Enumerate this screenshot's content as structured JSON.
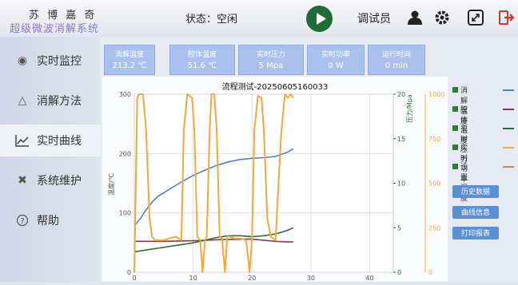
{
  "header": {
    "logo_line1": "苏 博 嘉 奇",
    "logo_line2": "超级微波消解系统",
    "status": "状态：空闲",
    "user": "调试员"
  },
  "sidebar": {
    "items": [
      {
        "label": "实时监控",
        "icon": "location-pin-icon"
      },
      {
        "label": "消解方法",
        "icon": "flask-icon"
      },
      {
        "label": "实时曲线",
        "icon": "line-chart-icon"
      },
      {
        "label": "系统维护",
        "icon": "wrench-icon"
      },
      {
        "label": "帮助",
        "icon": "help-icon"
      }
    ]
  },
  "stats": [
    {
      "label": "消解温度",
      "value": "213.2 ℃"
    },
    {
      "label": "腔体温度",
      "value": "51.6 ℃"
    },
    {
      "label": "实时压力",
      "value": "5 Mpa"
    },
    {
      "label": "实时功率",
      "value": "0 W"
    },
    {
      "label": "运行时间",
      "value": "0 min"
    }
  ],
  "legend": [
    {
      "label": "消解温度",
      "color": "#4a7fd4"
    },
    {
      "label": "腔体温度",
      "color": "#8a3a4a"
    },
    {
      "label": "实时压力",
      "color": "#2e6b3a"
    },
    {
      "label": "实时功率",
      "color": "#f2a93b"
    },
    {
      "label": "设置温度",
      "color": "#c98a4a"
    }
  ],
  "buttons": [
    "历史数据",
    "曲线信息",
    "打印报表"
  ],
  "chart_data": {
    "type": "line",
    "title": "流程测试-20250605160033",
    "xlabel": "",
    "ylabel_left": "温度/℃",
    "ylabel_right1": "压力/Mpa",
    "ylabel_right2": "",
    "xlim": [
      0,
      44
    ],
    "ylim_left": [
      0,
      300
    ],
    "ylim_right1": [
      0,
      20
    ],
    "ylim_right2": [
      0,
      1000
    ],
    "x_ticks": [
      "0",
      "10",
      "20",
      "30",
      "40"
    ],
    "y_left_ticks": [
      "0",
      "100",
      "200",
      "300"
    ],
    "y_right1_ticks": [
      "0",
      "5",
      "10",
      "15",
      "20"
    ],
    "y_right2_ticks": [
      "0",
      "250",
      "500",
      "750",
      "1000"
    ],
    "series": [
      {
        "name": "消解温度",
        "axis": "left",
        "color": "#4a7fd4",
        "x": [
          0,
          1,
          2,
          3,
          4,
          6,
          8,
          10,
          12,
          14,
          16,
          18,
          20,
          22,
          24,
          26,
          27
        ],
        "y": [
          78,
          90,
          105,
          118,
          128,
          140,
          152,
          163,
          172,
          180,
          186,
          190,
          192,
          193,
          195,
          202,
          208
        ]
      },
      {
        "name": "腔体温度",
        "axis": "left",
        "color": "#8a3a4a",
        "x": [
          0,
          5,
          10,
          15,
          20,
          22,
          24,
          26,
          27
        ],
        "y": [
          52,
          52,
          53,
          55,
          56,
          54,
          52,
          51,
          51
        ]
      },
      {
        "name": "实时压力",
        "axis": "right1",
        "color": "#2e6b3a",
        "x": [
          0,
          3,
          6,
          8,
          10,
          12,
          14,
          16,
          18,
          20,
          22,
          24,
          26,
          27
        ],
        "y": [
          2.3,
          2.6,
          2.9,
          3.1,
          3.3,
          3.6,
          3.9,
          4.1,
          4.1,
          4.0,
          4.1,
          4.3,
          4.7,
          5.0
        ]
      },
      {
        "name": "实时功率",
        "axis": "right2",
        "color": "#f2a93b",
        "x": [
          0,
          0.5,
          0.8,
          1.5,
          2.0,
          2.6,
          3.0,
          3.6,
          4.0,
          5.0,
          6.0,
          7.0,
          8.0,
          8.4,
          9.0,
          9.8,
          10.2,
          10.7,
          11.2,
          11.6,
          12.0,
          12.3,
          12.8,
          13.1,
          13.6,
          14.0,
          14.5,
          14.9,
          15.4,
          15.8,
          16.3,
          17.0,
          18.0,
          19.0,
          19.6,
          20.0,
          20.4,
          21.0,
          21.6,
          22.0,
          22.6,
          23.2,
          24.0,
          24.5,
          25.0,
          25.6,
          26.1,
          26.6,
          27.0
        ],
        "y": [
          0,
          980,
          1000,
          1000,
          800,
          300,
          200,
          180,
          180,
          180,
          190,
          200,
          180,
          800,
          1000,
          980,
          800,
          200,
          180,
          0,
          180,
          200,
          800,
          1000,
          1000,
          800,
          200,
          190,
          0,
          200,
          200,
          190,
          190,
          180,
          0,
          200,
          800,
          990,
          980,
          800,
          300,
          200,
          180,
          500,
          800,
          1000,
          980,
          1000,
          980
        ]
      }
    ]
  }
}
